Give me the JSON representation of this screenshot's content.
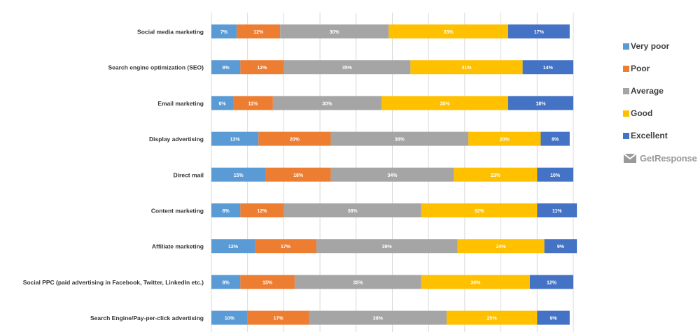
{
  "chart_data": {
    "type": "bar",
    "orientation": "horizontal",
    "stacked": true,
    "categories": [
      "Social media marketing",
      "Search engine optimization (SEO)",
      "Email marketing",
      "Display advertising",
      "Direct mail",
      "Content marketing",
      "Affiliate marketing",
      "Social PPC (paid advertising in Facebook, Twitter, LinkedIn etc.)",
      "Search Engine/Pay-per-click advertising"
    ],
    "series": [
      {
        "name": "Very poor",
        "color": "#5B9BD5",
        "values": [
          7,
          8,
          6,
          13,
          15,
          8,
          12,
          8,
          10
        ]
      },
      {
        "name": "Poor",
        "color": "#ED7D31",
        "values": [
          12,
          12,
          11,
          20,
          18,
          12,
          17,
          15,
          17
        ]
      },
      {
        "name": "Average",
        "color": "#A5A5A5",
        "values": [
          30,
          35,
          30,
          38,
          34,
          38,
          39,
          35,
          38
        ]
      },
      {
        "name": "Good",
        "color": "#FFC000",
        "values": [
          33,
          31,
          35,
          20,
          23,
          32,
          24,
          30,
          25
        ]
      },
      {
        "name": "Excellent",
        "color": "#4472C4",
        "values": [
          17,
          14,
          18,
          8,
          10,
          11,
          9,
          12,
          9
        ]
      }
    ],
    "value_suffix": "%",
    "xlim": [
      0,
      100
    ],
    "grid": true,
    "legend_position": "right"
  },
  "brand": {
    "name": "GetResponse",
    "icon": "envelope-icon"
  }
}
